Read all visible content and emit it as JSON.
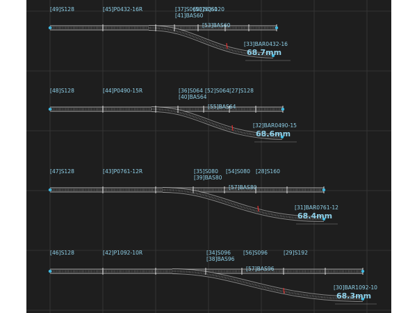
{
  "colors": {
    "background": "#1e1e1e",
    "grid": "#3a3a3a",
    "track": "#d8d8d8",
    "label": "#8fd0e8",
    "endpoint": "#3fb8e0",
    "joint_marker": "#e03030"
  },
  "layouts": [
    {
      "labels": {
        "straight_a": "[49]S128",
        "turnout": "[45]P0432-16R",
        "part_3": "[37]S060",
        "part_3b": "[41]BAS60",
        "part_4": "[50]S060",
        "part_5": "[26]S120",
        "small": "[53]BAS60",
        "curve": "[33]BAR0432-16"
      },
      "measurement": "68.7mm"
    },
    {
      "labels": {
        "straight_a": "[48]S128",
        "turnout": "[44]P0490-15R",
        "part_3": "[36]S064",
        "part_3b": "[40]BAS64",
        "part_4": "[52]S064",
        "part_5": "[27]S128",
        "small": "[55]BAS64",
        "curve": "[32]BAR0490-15"
      },
      "measurement": "68.6mm"
    },
    {
      "labels": {
        "straight_a": "[47]S128",
        "turnout": "[43]P0761-12R",
        "part_3": "[35]S080",
        "part_3b": "[39]BAS80",
        "part_4": "[54]S080",
        "part_5": "[28]S160",
        "small": "[57]BAS80",
        "curve": "[31]BAR0761-12"
      },
      "measurement": "68.4mm"
    },
    {
      "labels": {
        "straight_a": "[46]S128",
        "turnout": "[42]P1092-10R",
        "part_3": "[34]S096",
        "part_3b": "[38]BAS96",
        "part_4": "[56]S096",
        "part_5": "[29]S192",
        "small": "[57]BAS96",
        "curve": "[30]BAR1092-10"
      },
      "measurement": "68.3mm"
    }
  ]
}
